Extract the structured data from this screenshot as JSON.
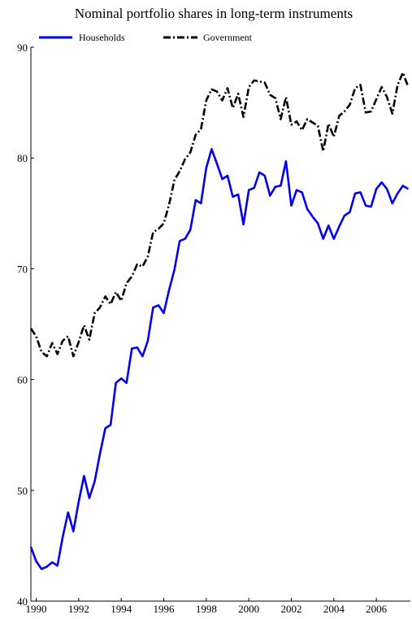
{
  "chart_data": {
    "type": "line",
    "title": "Nominal portfolio shares in long-term instruments",
    "xlabel": "",
    "ylabel": "",
    "xlim": [
      1989.75,
      2007.6
    ],
    "ylim": [
      40,
      90
    ],
    "x_ticks": [
      1990,
      1992,
      1994,
      1996,
      1998,
      2000,
      2002,
      2004,
      2006
    ],
    "x_tick_labels": [
      "1990",
      "1992",
      "1994",
      "1996",
      "1998",
      "2000",
      "2002",
      "2004",
      "2006"
    ],
    "y_ticks": [
      40,
      50,
      60,
      70,
      80,
      90
    ],
    "y_tick_labels": [
      "40",
      "50",
      "60",
      "70",
      "80",
      "90"
    ],
    "grid": false,
    "legend_placement": "top-left, horizontal",
    "x": [
      1989.75,
      1990.0,
      1990.25,
      1990.5,
      1990.75,
      1991.0,
      1991.25,
      1991.5,
      1991.75,
      1992.0,
      1992.25,
      1992.5,
      1992.75,
      1993.0,
      1993.25,
      1993.5,
      1993.75,
      1994.0,
      1994.25,
      1994.5,
      1994.75,
      1995.0,
      1995.25,
      1995.5,
      1995.75,
      1996.0,
      1996.25,
      1996.5,
      1996.75,
      1997.0,
      1997.25,
      1997.5,
      1997.75,
      1998.0,
      1998.25,
      1998.5,
      1998.75,
      1999.0,
      1999.25,
      1999.5,
      1999.75,
      2000.0,
      2000.25,
      2000.5,
      2000.75,
      2001.0,
      2001.25,
      2001.5,
      2001.75,
      2002.0,
      2002.25,
      2002.5,
      2002.75,
      2003.0,
      2003.25,
      2003.5,
      2003.75,
      2004.0,
      2004.25,
      2004.5,
      2004.75,
      2005.0,
      2005.25,
      2005.5,
      2005.75,
      2006.0,
      2006.25,
      2006.5,
      2006.75,
      2007.0,
      2007.25,
      2007.5
    ],
    "series": [
      {
        "name": "Households",
        "color": "#0000ee",
        "style": "solid",
        "values": [
          44.9,
          43.6,
          42.9,
          43.1,
          43.5,
          43.2,
          45.8,
          48.0,
          46.3,
          49.0,
          51.3,
          49.3,
          50.8,
          53.3,
          55.6,
          55.9,
          59.7,
          60.1,
          59.7,
          62.8,
          62.9,
          62.1,
          63.5,
          66.5,
          66.7,
          66.0,
          68.1,
          69.9,
          72.5,
          72.7,
          73.5,
          76.2,
          75.9,
          79.1,
          80.8,
          79.5,
          78.1,
          78.4,
          76.5,
          76.7,
          74.0,
          77.1,
          77.3,
          78.7,
          78.4,
          76.6,
          77.4,
          77.5,
          79.7,
          75.7,
          77.1,
          76.9,
          75.4,
          74.7,
          74.1,
          72.7,
          73.9,
          72.7,
          73.8,
          74.8,
          75.1,
          76.8,
          76.9,
          75.7,
          75.6,
          77.2,
          77.8,
          77.2,
          75.9,
          76.8,
          77.5,
          77.2
        ]
      },
      {
        "name": "Government",
        "color": "#000000",
        "style": "dash-dot",
        "values": [
          64.6,
          63.9,
          62.5,
          62.1,
          63.3,
          62.3,
          63.5,
          63.9,
          62.1,
          63.4,
          64.9,
          63.6,
          66.0,
          66.5,
          67.5,
          66.8,
          67.9,
          67.1,
          68.7,
          69.3,
          70.4,
          70.2,
          71.1,
          73.3,
          73.6,
          74.1,
          75.8,
          78.0,
          78.8,
          79.9,
          80.5,
          82.1,
          82.6,
          85.2,
          86.2,
          86.0,
          85.2,
          86.3,
          84.5,
          85.8,
          83.7,
          86.4,
          87.0,
          86.9,
          86.8,
          85.7,
          85.4,
          83.5,
          85.5,
          83.0,
          83.3,
          82.5,
          83.5,
          83.2,
          82.9,
          80.6,
          83.1,
          81.9,
          83.8,
          84.2,
          84.8,
          86.3,
          86.6,
          84.1,
          84.2,
          85.3,
          86.4,
          85.5,
          84.0,
          86.6,
          87.7,
          86.4
        ]
      }
    ]
  }
}
